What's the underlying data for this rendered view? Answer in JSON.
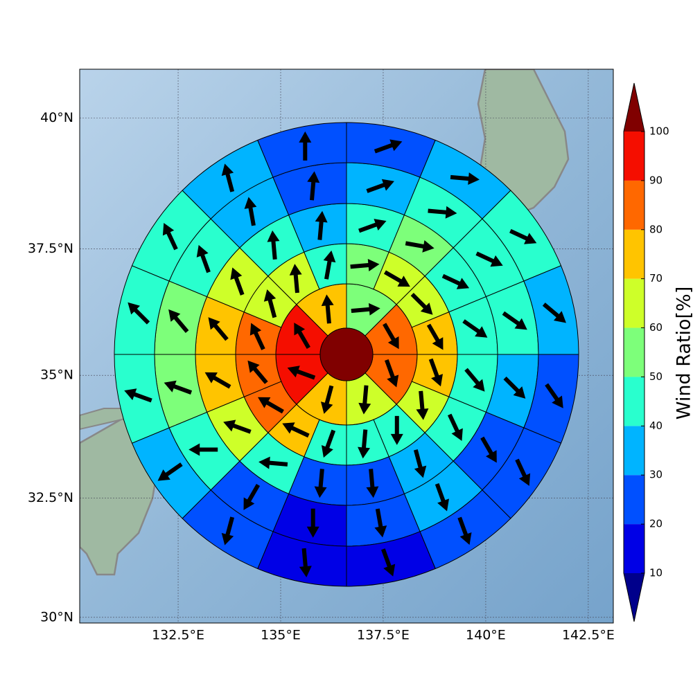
{
  "chart_data": {
    "type": "polar-map",
    "projection": "mercator",
    "xlim": [
      130.1,
      143.11
    ],
    "ylim": [
      29.88,
      40.91
    ],
    "xticks": [
      {
        "value": 132.5,
        "label": "132.5°E"
      },
      {
        "value": 135,
        "label": "135°E"
      },
      {
        "value": 137.5,
        "label": "137.5°E"
      },
      {
        "value": 140,
        "label": "140°E"
      },
      {
        "value": 142.5,
        "label": "142.5°E"
      }
    ],
    "yticks": [
      {
        "value": 30,
        "label": "30°N"
      },
      {
        "value": 32.5,
        "label": "32.5°N"
      },
      {
        "value": 35,
        "label": "35°N"
      },
      {
        "value": 37.5,
        "label": "37.5°N"
      },
      {
        "value": 40,
        "label": "40°N"
      }
    ],
    "grid": true,
    "center_value": 105,
    "rings": [
      {
        "values": [
          55,
          85,
          85,
          65,
          75,
          95,
          95,
          75
        ],
        "directions": [
          85,
          150,
          160,
          185,
          195,
          290,
          330,
          355
        ]
      },
      {
        "values": [
          55,
          65,
          65,
          75,
          75,
          65,
          45,
          45,
          45,
          75,
          85,
          85,
          85,
          65,
          65,
          45
        ],
        "directions": [
          85,
          120,
          135,
          150,
          160,
          175,
          180,
          185,
          200,
          295,
          300,
          320,
          335,
          345,
          355,
          10
        ]
      },
      {
        "values": [
          45,
          55,
          45,
          45,
          45,
          45,
          35,
          25,
          25,
          45,
          65,
          75,
          75,
          65,
          45,
          35
        ],
        "directions": [
          70,
          100,
          115,
          125,
          140,
          155,
          165,
          175,
          185,
          275,
          290,
          300,
          320,
          340,
          355,
          5
        ]
      },
      {
        "values": [
          35,
          45,
          45,
          45,
          35,
          25,
          35,
          25,
          15,
          25,
          45,
          55,
          55,
          45,
          35,
          25
        ],
        "directions": [
          70,
          95,
          115,
          125,
          135,
          150,
          160,
          170,
          180,
          210,
          270,
          290,
          320,
          340,
          350,
          5
        ]
      },
      {
        "values": [
          25,
          35,
          45,
          35,
          25,
          25,
          25,
          15,
          15,
          25,
          35,
          45,
          45,
          45,
          35,
          25
        ],
        "directions": [
          70,
          95,
          115,
          130,
          145,
          155,
          160,
          160,
          175,
          195,
          235,
          290,
          315,
          335,
          345,
          0
        ]
      }
    ],
    "colorbar": {
      "label": "Wind Ratio[%]",
      "levels": [
        10,
        20,
        30,
        40,
        50,
        60,
        70,
        80,
        90,
        100
      ],
      "colors": [
        "#00008b",
        "#0000e6",
        "#0050ff",
        "#00b4ff",
        "#29ffce",
        "#7dff7a",
        "#ceff29",
        "#ffc400",
        "#ff6800",
        "#f50e00",
        "#800000"
      ]
    }
  }
}
